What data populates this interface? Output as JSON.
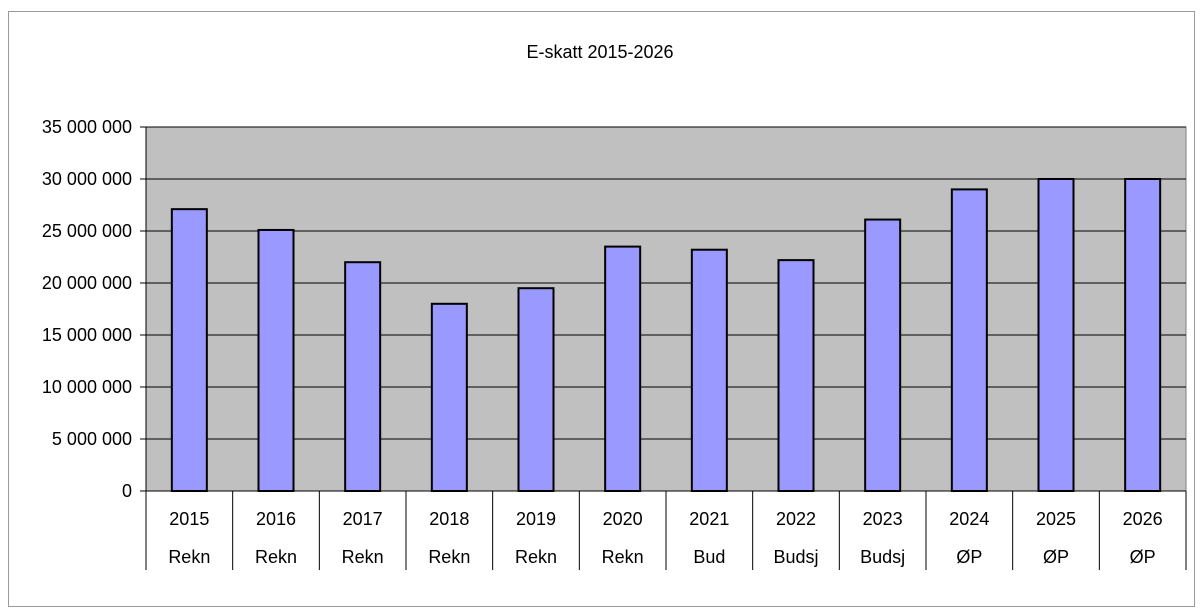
{
  "chart_data": {
    "type": "bar",
    "title": "E-skatt 2015-2026",
    "xlabel": "",
    "ylabel": "",
    "categories": [
      {
        "year": "2015",
        "kind": "Rekn"
      },
      {
        "year": "2016",
        "kind": "Rekn"
      },
      {
        "year": "2017",
        "kind": "Rekn"
      },
      {
        "year": "2018",
        "kind": "Rekn"
      },
      {
        "year": "2019",
        "kind": "Rekn"
      },
      {
        "year": "2020",
        "kind": "Rekn"
      },
      {
        "year": "2021",
        "kind": "Bud"
      },
      {
        "year": "2022",
        "kind": "Budsj"
      },
      {
        "year": "2023",
        "kind": "Budsj"
      },
      {
        "year": "2024",
        "kind": "ØP"
      },
      {
        "year": "2025",
        "kind": "ØP"
      },
      {
        "year": "2026",
        "kind": "ØP"
      }
    ],
    "values": [
      27100000,
      25100000,
      22000000,
      18000000,
      19500000,
      23500000,
      23200000,
      22200000,
      26100000,
      29000000,
      30000000,
      30000000
    ],
    "ylim": [
      0,
      35000000
    ],
    "yticks": [
      0,
      5000000,
      10000000,
      15000000,
      20000000,
      25000000,
      30000000,
      35000000
    ],
    "ytick_labels": [
      "0",
      "5 000 000",
      "10 000 000",
      "15 000 000",
      "20 000 000",
      "25 000 000",
      "30 000 000",
      "35 000 000"
    ],
    "grid": true,
    "legend": "none",
    "colors": {
      "bar_fill": "#9999ff",
      "bar_stroke": "#000000",
      "plot_background": "#c0c0c0",
      "gridline": "#000000"
    }
  }
}
